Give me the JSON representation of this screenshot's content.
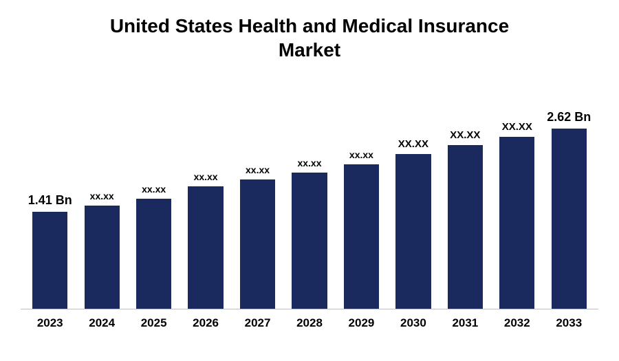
{
  "chart": {
    "type": "bar",
    "title_line1": "United States Health and Medical Insurance",
    "title_line2": "Market",
    "title_fontsize": 28,
    "title_color": "#000000",
    "background_color": "#ffffff",
    "bar_color": "#1a2a5e",
    "axis_line_color": "#bfbfbf",
    "x_label_fontsize": 17,
    "x_label_fontweight": "700",
    "data_label_color": "#000000",
    "bar_width_ratio": 0.68,
    "y_max": 2.8,
    "bars": [
      {
        "year": "2023",
        "value": 1.41,
        "label": "1.41 Bn",
        "label_fontsize": 18
      },
      {
        "year": "2024",
        "value": 1.5,
        "label": "xx.xx",
        "label_fontsize": 14
      },
      {
        "year": "2025",
        "value": 1.6,
        "label": "xx.xx",
        "label_fontsize": 14
      },
      {
        "year": "2026",
        "value": 1.78,
        "label": "xx.xx",
        "label_fontsize": 14
      },
      {
        "year": "2027",
        "value": 1.88,
        "label": "xx.xx",
        "label_fontsize": 14
      },
      {
        "year": "2028",
        "value": 1.98,
        "label": "xx.xx",
        "label_fontsize": 14
      },
      {
        "year": "2029",
        "value": 2.1,
        "label": "xx.xx",
        "label_fontsize": 14
      },
      {
        "year": "2030",
        "value": 2.25,
        "label": "XX.XX",
        "label_fontsize": 15
      },
      {
        "year": "2031",
        "value": 2.38,
        "label": "XX.XX",
        "label_fontsize": 15
      },
      {
        "year": "2032",
        "value": 2.5,
        "label": "XX.XX",
        "label_fontsize": 15
      },
      {
        "year": "2033",
        "value": 2.62,
        "label": "2.62  Bn",
        "label_fontsize": 18
      }
    ]
  }
}
